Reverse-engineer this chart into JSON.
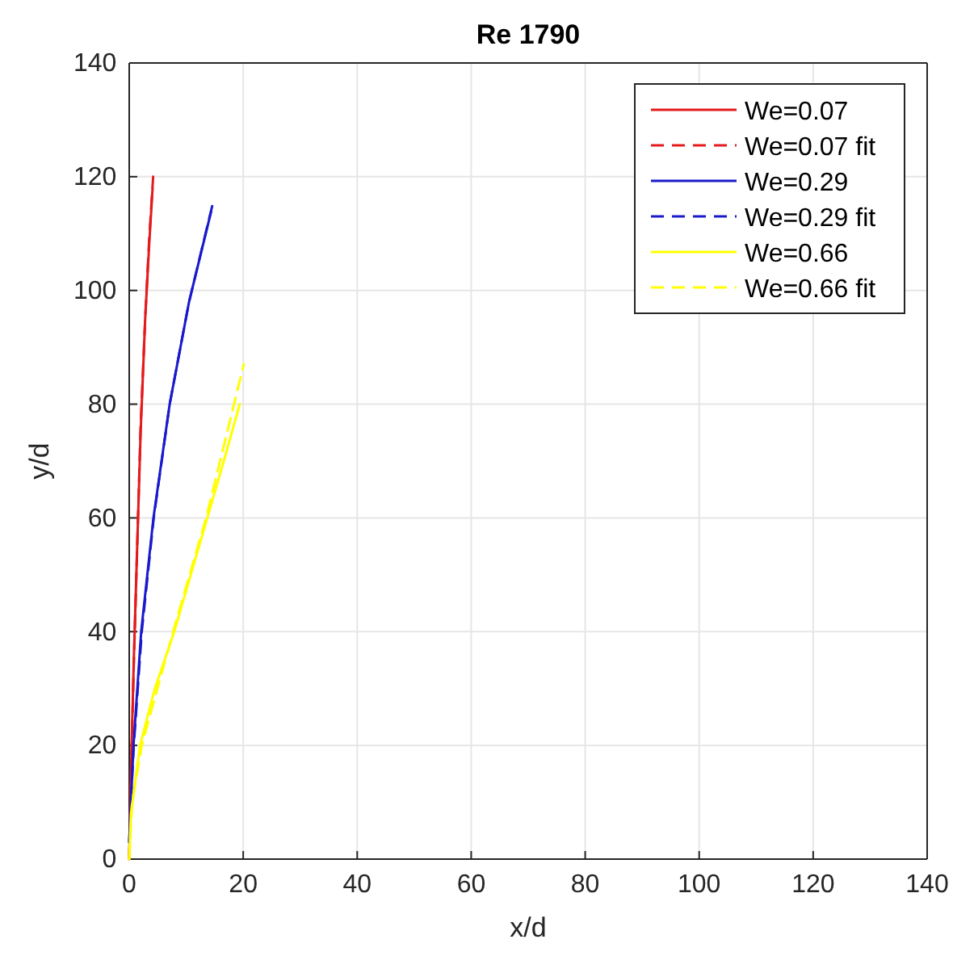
{
  "chart_data": {
    "type": "line",
    "title": "Re 1790",
    "xlabel": "x/d",
    "ylabel": "y/d",
    "xlim": [
      0,
      140
    ],
    "ylim": [
      0,
      140
    ],
    "xticks": [
      0,
      20,
      40,
      60,
      80,
      100,
      120,
      140
    ],
    "yticks": [
      0,
      20,
      40,
      60,
      80,
      100,
      120,
      140
    ],
    "grid": true,
    "legend": "top right",
    "marker": "none",
    "series": [
      {
        "name": "We=0.07",
        "color": "#e41a1c",
        "line_style": "solid",
        "x": [
          0,
          0.3,
          0.8,
          1.4,
          2,
          2.8,
          3.5,
          4.1
        ],
        "values": [
          0,
          15,
          35,
          55,
          75,
          95,
          108,
          118
        ]
      },
      {
        "name": "We=0.07 fit",
        "color": "#e41a1c",
        "line_style": "dashed",
        "x": [
          0,
          0.3,
          0.8,
          1.4,
          2,
          2.8,
          3.5,
          4.2
        ],
        "values": [
          0,
          14,
          34,
          55,
          76,
          95,
          109,
          120
        ]
      },
      {
        "name": "We=0.29",
        "color": "#1a1acc",
        "line_style": "solid",
        "x": [
          0,
          0.3,
          0.75,
          2.1,
          4.25,
          7.1,
          10.5,
          14.4
        ],
        "values": [
          3,
          10,
          20,
          40,
          60,
          80,
          98,
          114
        ]
      },
      {
        "name": "We=0.29 fit",
        "color": "#1a1acc",
        "line_style": "dashed",
        "x": [
          0,
          0.3,
          0.8,
          2.2,
          4.3,
          7.1,
          10.5,
          14.6
        ],
        "values": [
          3,
          10,
          20,
          40,
          60,
          80,
          98,
          115
        ]
      },
      {
        "name": "We=0.66",
        "color": "#ffff00",
        "line_style": "solid",
        "x": [
          0,
          0.3,
          1.9,
          4.5,
          7.9,
          10.8,
          13.7,
          16.6,
          19.4
        ],
        "values": [
          0,
          8,
          20,
          30,
          40,
          50,
          60,
          70,
          80
        ]
      },
      {
        "name": "We=0.66 fit",
        "color": "#ffff00",
        "line_style": "dashed",
        "x": [
          0,
          0.5,
          2.2,
          7.7,
          13.5,
          20.1
        ],
        "values": [
          0,
          10,
          20,
          40,
          60,
          87
        ]
      }
    ]
  }
}
